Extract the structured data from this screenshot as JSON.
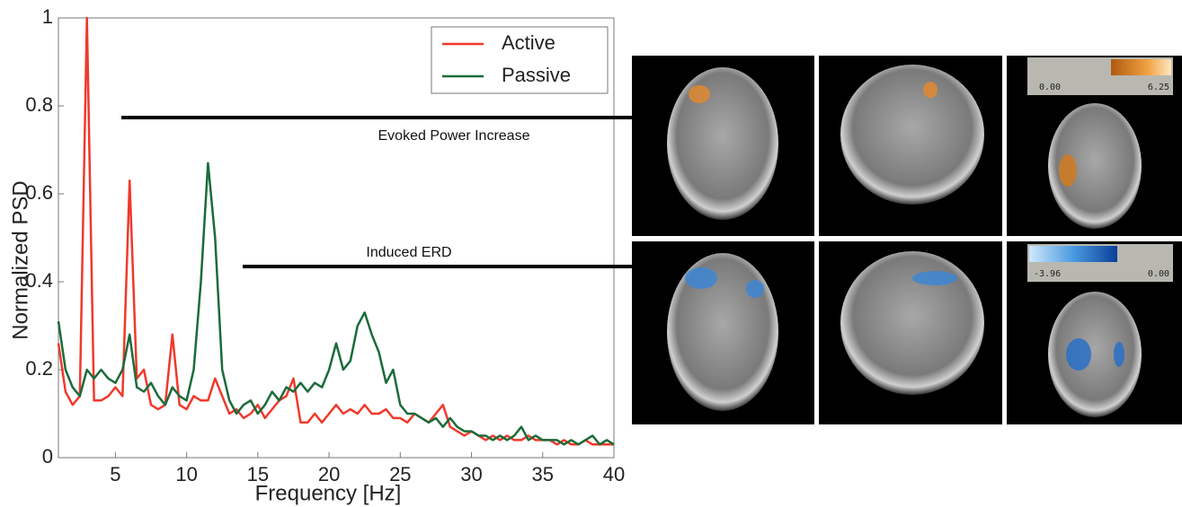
{
  "chart_data": {
    "type": "line",
    "x_label": "Frequency [Hz]",
    "y_label": "Normalized PSD",
    "x": [
      1,
      1.5,
      2,
      2.5,
      3,
      3.5,
      4,
      4.5,
      5,
      5.5,
      6,
      6.5,
      7,
      7.5,
      8,
      8.5,
      9,
      9.5,
      10,
      10.5,
      11,
      11.5,
      12,
      12.5,
      13,
      13.5,
      14,
      14.5,
      15,
      15.5,
      16,
      16.5,
      17,
      17.5,
      18,
      18.5,
      19,
      19.5,
      20,
      20.5,
      21,
      21.5,
      22,
      22.5,
      23,
      23.5,
      24,
      24.5,
      25,
      25.5,
      26,
      26.5,
      27,
      27.5,
      28,
      28.5,
      29,
      29.5,
      30,
      30.5,
      31,
      31.5,
      32,
      32.5,
      33,
      33.5,
      34,
      34.5,
      35,
      35.5,
      36,
      36.5,
      37,
      37.5,
      38,
      38.5,
      39,
      39.5,
      40
    ],
    "series": [
      {
        "name": "Active",
        "color": "#f0392b",
        "values": [
          0.26,
          0.15,
          0.12,
          0.14,
          1.0,
          0.13,
          0.13,
          0.14,
          0.16,
          0.14,
          0.63,
          0.18,
          0.2,
          0.12,
          0.11,
          0.12,
          0.28,
          0.12,
          0.11,
          0.14,
          0.13,
          0.13,
          0.18,
          0.14,
          0.1,
          0.11,
          0.09,
          0.1,
          0.12,
          0.09,
          0.11,
          0.13,
          0.14,
          0.18,
          0.08,
          0.08,
          0.1,
          0.08,
          0.1,
          0.12,
          0.1,
          0.11,
          0.1,
          0.12,
          0.1,
          0.1,
          0.11,
          0.09,
          0.09,
          0.08,
          0.1,
          0.09,
          0.08,
          0.1,
          0.12,
          0.07,
          0.06,
          0.05,
          0.06,
          0.05,
          0.04,
          0.05,
          0.04,
          0.05,
          0.04,
          0.04,
          0.05,
          0.04,
          0.04,
          0.04,
          0.03,
          0.04,
          0.03,
          0.03,
          0.04,
          0.03,
          0.03,
          0.03,
          0.03
        ]
      },
      {
        "name": "Passive",
        "color": "#1b6b3a",
        "values": [
          0.31,
          0.2,
          0.16,
          0.14,
          0.2,
          0.18,
          0.2,
          0.18,
          0.17,
          0.2,
          0.28,
          0.16,
          0.15,
          0.17,
          0.14,
          0.12,
          0.16,
          0.14,
          0.13,
          0.2,
          0.4,
          0.67,
          0.5,
          0.2,
          0.13,
          0.1,
          0.12,
          0.13,
          0.1,
          0.12,
          0.15,
          0.13,
          0.16,
          0.15,
          0.17,
          0.15,
          0.17,
          0.16,
          0.2,
          0.26,
          0.2,
          0.22,
          0.3,
          0.33,
          0.28,
          0.24,
          0.17,
          0.2,
          0.12,
          0.1,
          0.1,
          0.09,
          0.08,
          0.09,
          0.07,
          0.09,
          0.07,
          0.06,
          0.06,
          0.05,
          0.05,
          0.04,
          0.05,
          0.04,
          0.05,
          0.07,
          0.04,
          0.05,
          0.04,
          0.04,
          0.04,
          0.03,
          0.04,
          0.03,
          0.04,
          0.05,
          0.03,
          0.04,
          0.03
        ]
      }
    ],
    "xlim": [
      1,
      40
    ],
    "ylim": [
      0,
      1
    ],
    "xticks": [
      5,
      10,
      15,
      20,
      25,
      30,
      35,
      40
    ],
    "yticks": [
      0,
      0.2,
      0.4,
      0.6,
      0.8,
      1
    ],
    "legend": "upper right",
    "grid": false,
    "annotations": [
      "Evoked Power Increase",
      "Induced ERD"
    ],
    "colorbar_labels": [
      [
        "0.00",
        "6.25"
      ],
      [
        "-3.96",
        "0.00"
      ]
    ]
  }
}
